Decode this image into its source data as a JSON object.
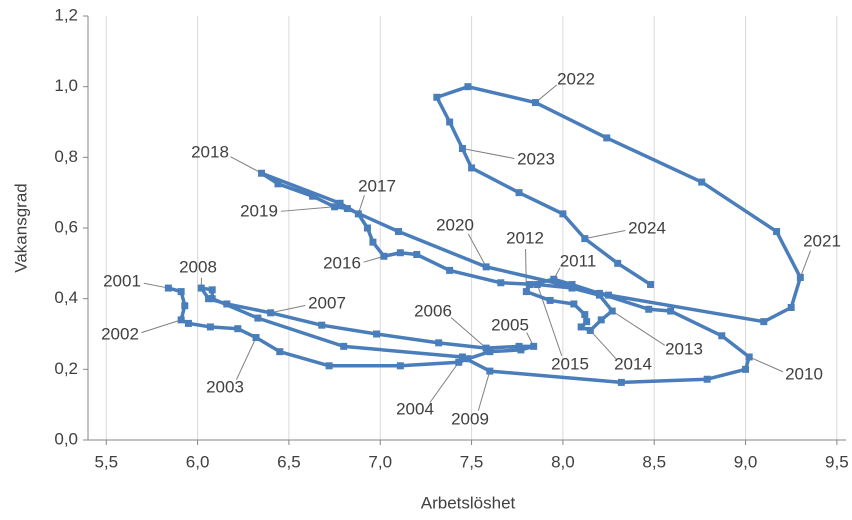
{
  "chart_data": {
    "type": "line",
    "x_label": "Arbetslöshet",
    "y_label": "Vakansgrad",
    "xlim": [
      5.4,
      9.55
    ],
    "ylim": [
      0,
      1.2
    ],
    "xticks": [
      {
        "value": 5.5,
        "label": "5,5"
      },
      {
        "value": 6,
        "label": "6,0"
      },
      {
        "value": 6.5,
        "label": "6,5"
      },
      {
        "value": 7,
        "label": "7,0"
      },
      {
        "value": 7.5,
        "label": "7,5"
      },
      {
        "value": 8,
        "label": "8,0"
      },
      {
        "value": 8.5,
        "label": "8,5"
      },
      {
        "value": 9,
        "label": "9,0"
      },
      {
        "value": 9.5,
        "label": "9,5"
      }
    ],
    "yticks": [
      {
        "value": 0,
        "label": "0,0"
      },
      {
        "value": 0.2,
        "label": "0,2"
      },
      {
        "value": 0.4,
        "label": "0,4"
      },
      {
        "value": 0.6,
        "label": "0,6"
      },
      {
        "value": 0.8,
        "label": "0,8"
      },
      {
        "value": 1,
        "label": "1,0"
      },
      {
        "value": 1.2,
        "label": "1,2"
      }
    ],
    "grid": "x",
    "series": [
      {
        "color": "#4a7ebb",
        "x": [
          5.84,
          5.91,
          5.93,
          5.91,
          5.95,
          6.07,
          6.22,
          6.32,
          6.45,
          6.72,
          7.11,
          7.43,
          7.48,
          7.6,
          7.77,
          7.84,
          7.76,
          7.58,
          7.32,
          6.98,
          6.68,
          6.4,
          6.16,
          6.06,
          6.02,
          6.08,
          6.08,
          6.33,
          6.8,
          7.45,
          7.6,
          8.32,
          8.79,
          9.0,
          9.02,
          8.87,
          8.59,
          8.47,
          8.2,
          8.05,
          7.95,
          7.82,
          7.8,
          7.93,
          8.06,
          8.12,
          8.13,
          8.1,
          8.15,
          8.21,
          8.27,
          8.2,
          8.05,
          7.86,
          7.66,
          7.38,
          7.2,
          7.11,
          7.02,
          6.96,
          6.93,
          6.88,
          6.78,
          6.35,
          6.44,
          6.63,
          6.75,
          6.82,
          7.1,
          7.58,
          8.25,
          9.1,
          9.25,
          9.3,
          9.17,
          8.76,
          8.24,
          7.85,
          7.48,
          7.31,
          7.38,
          7.45,
          7.5,
          7.76,
          8.0,
          8.12,
          8.3,
          8.48
        ],
        "values": [
          0.43,
          0.42,
          0.38,
          0.34,
          0.33,
          0.32,
          0.315,
          0.29,
          0.25,
          0.21,
          0.21,
          0.22,
          0.23,
          0.25,
          0.255,
          0.265,
          0.265,
          0.26,
          0.275,
          0.3,
          0.325,
          0.36,
          0.385,
          0.4,
          0.43,
          0.425,
          0.4,
          0.345,
          0.265,
          0.235,
          0.195,
          0.163,
          0.172,
          0.2,
          0.235,
          0.295,
          0.365,
          0.37,
          0.415,
          0.44,
          0.455,
          0.44,
          0.42,
          0.395,
          0.385,
          0.355,
          0.335,
          0.32,
          0.31,
          0.34,
          0.365,
          0.41,
          0.43,
          0.44,
          0.445,
          0.48,
          0.525,
          0.53,
          0.52,
          0.56,
          0.6,
          0.64,
          0.67,
          0.755,
          0.725,
          0.69,
          0.66,
          0.655,
          0.59,
          0.49,
          0.41,
          0.335,
          0.375,
          0.46,
          0.59,
          0.73,
          0.855,
          0.955,
          1.0,
          0.97,
          0.9,
          0.825,
          0.77,
          0.7,
          0.64,
          0.57,
          0.5,
          0.44
        ]
      }
    ],
    "annotations": [
      "2001",
      "2002",
      "2003",
      "2004",
      "2005",
      "2006",
      "2007",
      "2008",
      "2009",
      "2010",
      "2011",
      "2012",
      "2013",
      "2014",
      "2015",
      "2016",
      "2017",
      "2018",
      "2019",
      "2020",
      "2021",
      "2022",
      "2023",
      "2024"
    ]
  }
}
